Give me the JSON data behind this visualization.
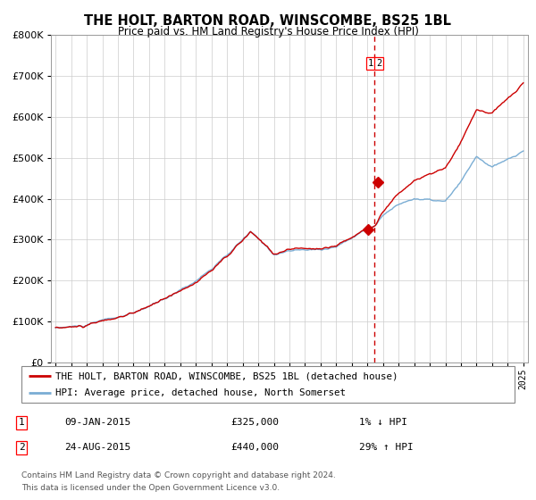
{
  "title": "THE HOLT, BARTON ROAD, WINSCOMBE, BS25 1BL",
  "subtitle": "Price paid vs. HM Land Registry's House Price Index (HPI)",
  "legend_line1": "THE HOLT, BARTON ROAD, WINSCOMBE, BS25 1BL (detached house)",
  "legend_line2": "HPI: Average price, detached house, North Somerset",
  "annotation1_date": "09-JAN-2015",
  "annotation1_price": "£325,000",
  "annotation1_pct": "1% ↓ HPI",
  "annotation2_date": "24-AUG-2015",
  "annotation2_price": "£440,000",
  "annotation2_pct": "29% ↑ HPI",
  "footnote1": "Contains HM Land Registry data © Crown copyright and database right 2024.",
  "footnote2": "This data is licensed under the Open Government Licence v3.0.",
  "hpi_color": "#7aadd4",
  "price_color": "#cc0000",
  "vline_color": "#cc0000",
  "marker_color": "#cc0000",
  "ylim": [
    0,
    800000
  ],
  "ytick_step": 100000,
  "sale1_year": 2015.03,
  "sale1_value": 325000,
  "sale2_year": 2015.65,
  "sale2_value": 440000,
  "vline_year": 2015.45,
  "bg_color": "#f0f0f0"
}
